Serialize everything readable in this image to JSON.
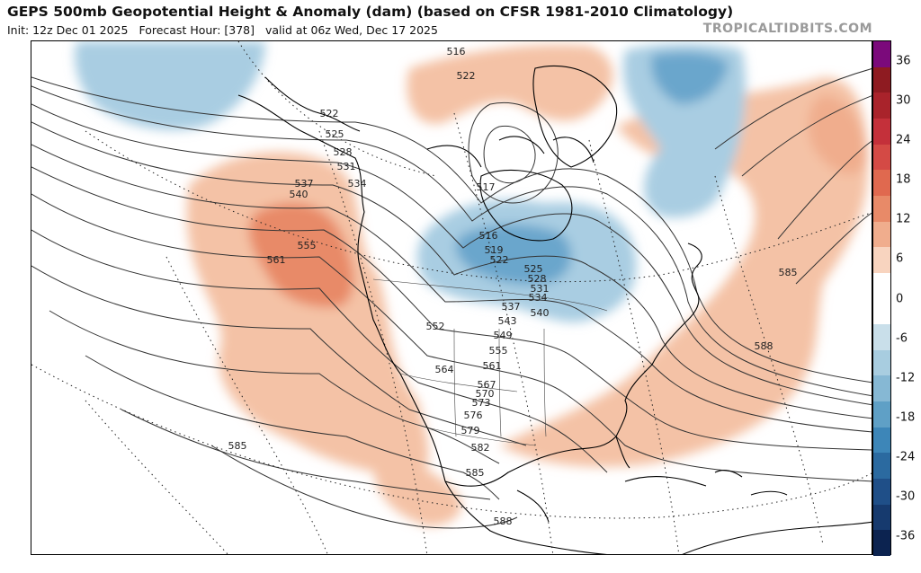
{
  "header": {
    "title": "GEPS 500mb Geopotential Height & Anomaly (dam) (based on CFSR 1981-2010 Climatology)",
    "init": "Init: 12z Dec 01 2025",
    "forecast_hour": "Forecast Hour: [378]",
    "valid": "valid at 06z Wed, Dec 17 2025",
    "credit": "TROPICALTIDBITS.COM"
  },
  "colorbar": {
    "ticks": [
      "36",
      "30",
      "24",
      "18",
      "12",
      "6",
      "0",
      "-6",
      "-12",
      "-18",
      "-24",
      "-30",
      "-36"
    ],
    "colors": [
      "#7b0a7b",
      "#8e1b21",
      "#a9232b",
      "#c4303a",
      "#d44a45",
      "#e0694f",
      "#e88a68",
      "#f0ad8d",
      "#f8d4bf",
      "#ffffff",
      "#ffffff",
      "#c9dfea",
      "#a8cde0",
      "#86b8d4",
      "#5fa0c6",
      "#3d86b8",
      "#2b6aa0",
      "#1f4f88",
      "#163a6e",
      "#0c2350"
    ]
  },
  "map": {
    "contour_labels": [
      "516",
      "522",
      "525",
      "528",
      "531",
      "534",
      "537",
      "540",
      "555",
      "561",
      "517",
      "516",
      "519",
      "522",
      "525",
      "528",
      "531",
      "534",
      "537",
      "540",
      "543",
      "549",
      "552",
      "555",
      "561",
      "564",
      "567",
      "570",
      "573",
      "576",
      "579",
      "582",
      "585",
      "585",
      "585",
      "588",
      "588"
    ],
    "colors": {
      "positive_anomaly": "#f4c2a6",
      "strong_positive_anomaly": "#e88a68",
      "negative_anomaly": "#a9cde2",
      "strong_negative_anomaly": "#6aa6cc",
      "contour": "#333333",
      "coast": "#000000"
    }
  }
}
